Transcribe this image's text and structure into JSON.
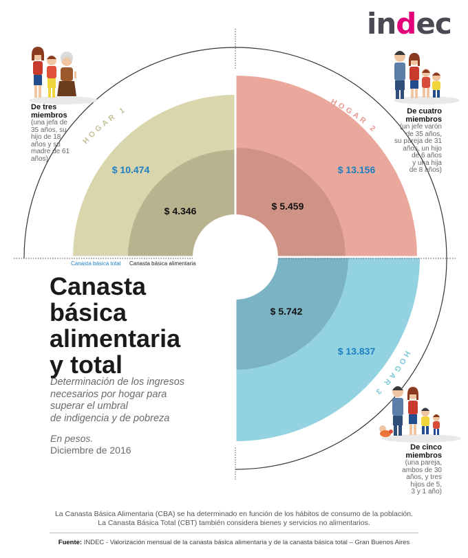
{
  "brand": {
    "logo_left": "in",
    "logo_accent": "d",
    "logo_right": "ec",
    "accent_color": "#e3007a"
  },
  "title_lines": [
    "Canasta",
    "básica",
    "alimentaria",
    "y total"
  ],
  "subtitle_lines": [
    "Determinación de los ingresos",
    "necesarios por hogar para",
    "superar el umbral",
    "de indigencia y de pobreza"
  ],
  "units": "En pesos.",
  "period": "Diciembre de 2016",
  "legend": {
    "cbt_label": "Canasta básica total",
    "cba_label": "Canasta básica alimentaria",
    "cbt_color": "#1c7fc1"
  },
  "households": [
    {
      "arc_label": "HOGAR 1",
      "title_lines": [
        "De tres",
        "miembros"
      ],
      "desc_lines": [
        "(una jefa de",
        "35 años, su",
        "hijo de 18",
        "años y su",
        "madre de 61",
        "años)"
      ],
      "cbt_value": "$ 10.474",
      "cba_value": "$ 4.346",
      "outer_color": "#d9d5ad",
      "inner_color": "#b8b28f",
      "label_color": "#c4bf96",
      "icon": "family-of-three-icon"
    },
    {
      "arc_label": "HOGAR 2",
      "title_lines": [
        "De cuatro",
        "miembros"
      ],
      "desc_lines": [
        "(un jefe varón",
        "de 35 años,",
        "su pareja de 31",
        "años, un hijo",
        "de 6 años",
        "y una hija",
        "de 8 años)"
      ],
      "cbt_value": "$ 13.156",
      "cba_value": "$ 5.459",
      "outer_color": "#eaa79b",
      "inner_color": "#cf9385",
      "label_color": "#e69a8c",
      "icon": "family-of-four-icon"
    },
    {
      "arc_label": "HOGAR 3",
      "title_lines": [
        "De cinco",
        "miembros"
      ],
      "desc_lines": [
        "(una pareja,",
        "ambos de 30",
        "años, y tres",
        "hijos de 5,",
        "3 y 1 año)"
      ],
      "cbt_value": "$ 13.837",
      "cba_value": "$ 5.742",
      "outer_color": "#93d3e1",
      "inner_color": "#7cb3c4",
      "label_color": "#7fc9d9",
      "icon": "family-of-five-icon"
    }
  ],
  "footer_lines": [
    "La Canasta Básica Alimentaria (CBA) se ha determinado en función de los hábitos de consumo de la población.",
    "La Canasta Básica Total (CBT) también considera bienes y servicios no alimentarios."
  ],
  "source_label": "Fuente:",
  "source_text": "INDEC - Valorización mensual de la canasta básica alimentaria y de la canasta básica total – Gran Buenos Aires"
}
